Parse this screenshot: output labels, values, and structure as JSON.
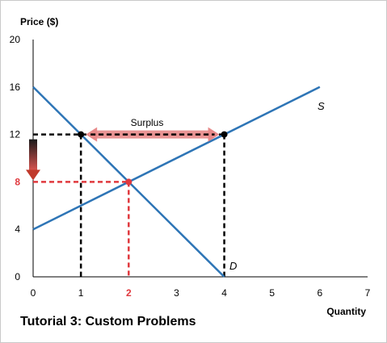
{
  "chart_data": {
    "type": "line",
    "title": "",
    "footer_title": "Tutorial 3: Custom Problems",
    "ylabel": "Price ($)",
    "xlabel": "Quantity",
    "xlim": [
      0,
      7
    ],
    "ylim": [
      0,
      20
    ],
    "x_ticks": [
      0,
      1,
      2,
      3,
      4,
      5,
      6,
      7
    ],
    "y_ticks": [
      0,
      4,
      8,
      12,
      16,
      20
    ],
    "highlight_ticks": {
      "x": [
        2
      ],
      "y": [
        8
      ]
    },
    "grid": false,
    "series": [
      {
        "name": "D",
        "points": [
          [
            0,
            16
          ],
          [
            4,
            0
          ]
        ],
        "color": "#2e75b6"
      },
      {
        "name": "S",
        "points": [
          [
            0,
            4
          ],
          [
            6,
            16
          ]
        ],
        "color": "#2e75b6"
      }
    ],
    "guides": [
      {
        "color": "#000000",
        "points": [
          [
            0,
            12
          ],
          [
            4,
            12
          ]
        ]
      },
      {
        "color": "#000000",
        "points": [
          [
            1,
            12
          ],
          [
            1,
            0
          ]
        ]
      },
      {
        "color": "#000000",
        "points": [
          [
            4,
            12
          ],
          [
            4,
            0
          ]
        ]
      },
      {
        "color": "#e0393e",
        "points": [
          [
            0,
            8
          ],
          [
            2,
            8
          ]
        ]
      },
      {
        "color": "#e0393e",
        "points": [
          [
            2,
            8
          ],
          [
            2,
            0
          ]
        ]
      }
    ],
    "points": [
      {
        "x": 1,
        "y": 12,
        "color": "#000000"
      },
      {
        "x": 4,
        "y": 12,
        "color": "#000000"
      },
      {
        "x": 2,
        "y": 8,
        "color": "#e0393e"
      }
    ],
    "annotations": [
      {
        "text": "Surplus",
        "type": "double-arrow",
        "from": [
          1,
          12
        ],
        "to": [
          4,
          12
        ],
        "color": "#e88a8a"
      },
      {
        "type": "down-arrow",
        "x": 0,
        "from_y": 12,
        "to_y": 8,
        "color": "#c0392b"
      }
    ],
    "colors": {
      "axis": "#000000",
      "tick_text": "#000000",
      "highlight": "#e0393e",
      "curve": "#2e75b6"
    }
  }
}
